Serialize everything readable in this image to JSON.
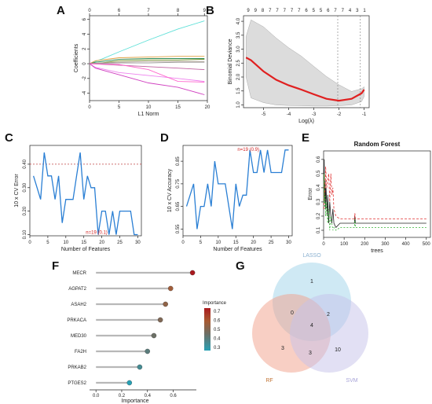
{
  "panel_letters": {
    "A": "A",
    "B": "B",
    "C": "C",
    "D": "D",
    "E": "E",
    "F": "F",
    "G": "G"
  },
  "chart_data": [
    {
      "panel": "A",
      "type": "line",
      "xlabel": "L1 Norm",
      "ylabel": "Coefficients",
      "xlim": [
        0,
        20
      ],
      "ylim": [
        -5,
        6.5
      ],
      "x_ticks": [
        "0",
        "5",
        "10",
        "15",
        "20"
      ],
      "y_ticks": [
        "-4",
        "-2",
        "0",
        "2",
        "4",
        "6"
      ],
      "top_ticks": [
        "0",
        "6",
        "7",
        "8",
        "9"
      ],
      "top_tick_x": [
        0,
        5,
        10,
        15,
        19.5
      ],
      "series": [
        {
          "color": "#5ee0d8",
          "x": [
            0,
            1,
            2,
            5,
            10,
            15,
            19.5
          ],
          "y": [
            0,
            0.3,
            0.6,
            1.6,
            3.2,
            4.7,
            5.8
          ]
        },
        {
          "color": "#e0a040",
          "x": [
            0,
            1,
            5,
            10,
            15,
            19.5
          ],
          "y": [
            0,
            0.4,
            0.8,
            0.9,
            1.0,
            1.0
          ]
        },
        {
          "color": "#2e8b57",
          "x": [
            0,
            1,
            5,
            10,
            15,
            19.5
          ],
          "y": [
            0,
            0.2,
            0.6,
            0.7,
            0.7,
            0.7
          ]
        },
        {
          "color": "#6b8e23",
          "x": [
            0,
            2,
            5,
            10,
            15,
            19.5
          ],
          "y": [
            0,
            0.1,
            0.4,
            0.5,
            0.5,
            0.6
          ]
        },
        {
          "color": "#b0a090",
          "x": [
            0,
            2,
            5,
            10,
            15,
            19.5
          ],
          "y": [
            0,
            0.1,
            0.2,
            0.3,
            0.3,
            0.3
          ]
        },
        {
          "color": "#999999",
          "x": [
            0,
            5,
            10,
            15,
            19.5
          ],
          "y": [
            0,
            0.1,
            0.1,
            0.2,
            0.2
          ]
        },
        {
          "color": "#ee82ee",
          "x": [
            0,
            1,
            5,
            10,
            15,
            19.5
          ],
          "y": [
            0,
            -0.5,
            -1.2,
            -1.6,
            -2.0,
            -2.4
          ]
        },
        {
          "color": "#d040c0",
          "x": [
            0,
            1,
            5,
            10,
            15,
            19.5
          ],
          "y": [
            0,
            -0.6,
            -1.5,
            -2.6,
            -3.2,
            -4.2
          ]
        },
        {
          "color": "#c060a0",
          "x": [
            0,
            5,
            10,
            15,
            19.5
          ],
          "y": [
            0,
            -0.2,
            -0.4,
            -0.6,
            -0.8
          ]
        },
        {
          "color": "#ff66cc",
          "x": [
            0,
            5,
            10,
            15,
            19.5
          ],
          "y": [
            0,
            -0.1,
            -0.8,
            -2.4,
            -2.5
          ]
        }
      ]
    },
    {
      "panel": "B",
      "type": "line",
      "xlabel": "Log(λ)",
      "ylabel": "Binomial Deviance",
      "xlim": [
        -5.8,
        -0.8
      ],
      "ylim": [
        0.9,
        4.2
      ],
      "x_ticks": [
        "-5",
        "-4",
        "-3",
        "-2",
        "-1"
      ],
      "y_ticks": [
        "1.0",
        "1.5",
        "2.0",
        "2.5",
        "3.0",
        "3.5",
        "4.0"
      ],
      "top_ticks": [
        "9",
        "9",
        "8",
        "7",
        "7",
        "7",
        "7",
        "7",
        "6",
        "5",
        "5",
        "6",
        "7",
        "7",
        "4",
        "3",
        "1"
      ],
      "vlines": [
        -2.05,
        -1.15
      ],
      "x": [
        -5.7,
        -5.5,
        -5,
        -4.5,
        -4,
        -3.5,
        -3,
        -2.5,
        -2,
        -1.5,
        -1.1,
        -1.0
      ],
      "y": [
        2.7,
        2.6,
        2.2,
        1.9,
        1.7,
        1.55,
        1.38,
        1.22,
        1.15,
        1.22,
        1.42,
        1.55
      ],
      "upper": [
        3.45,
        4.05,
        3.8,
        3.4,
        3.05,
        2.75,
        2.38,
        2.02,
        1.72,
        1.48,
        1.58,
        1.65
      ],
      "lower": [
        2.0,
        1.25,
        1.08,
        1.0,
        0.98,
        0.97,
        0.96,
        0.96,
        0.97,
        1.0,
        1.12,
        1.3
      ]
    },
    {
      "panel": "C",
      "type": "line",
      "xlabel": "Number of Features",
      "ylabel": "10 x CV Error",
      "xlim": [
        0,
        31
      ],
      "ylim": [
        0.095,
        0.48
      ],
      "x_ticks": [
        "0",
        "5",
        "10",
        "15",
        "20",
        "25",
        "30"
      ],
      "y_ticks": [
        "0.10",
        "0.20",
        "0.30",
        "0.40"
      ],
      "hline": 0.4,
      "annotation": "n=19 (0.1)",
      "x": [
        1,
        2,
        3,
        4,
        5,
        6,
        7,
        8,
        9,
        10,
        11,
        12,
        13,
        14,
        15,
        16,
        17,
        18,
        19,
        20,
        21,
        22,
        23,
        24,
        25,
        26,
        27,
        28,
        29,
        30
      ],
      "y": [
        0.35,
        0.3,
        0.25,
        0.45,
        0.35,
        0.35,
        0.25,
        0.35,
        0.15,
        0.25,
        0.25,
        0.25,
        0.35,
        0.45,
        0.25,
        0.35,
        0.3,
        0.3,
        0.1,
        0.2,
        0.2,
        0.1,
        0.2,
        0.1,
        0.2,
        0.2,
        0.2,
        0.2,
        0.1,
        0.1
      ]
    },
    {
      "panel": "D",
      "type": "line",
      "xlabel": "Number of Features",
      "ylabel": "10 x CV Accuracy",
      "xlim": [
        0,
        31
      ],
      "ylim": [
        0.52,
        0.92
      ],
      "x_ticks": [
        "0",
        "5",
        "10",
        "15",
        "20",
        "25",
        "30"
      ],
      "y_ticks": [
        "0.55",
        "0.65",
        "0.75",
        "0.85"
      ],
      "annotation": "n=19 (0.9)",
      "x": [
        1,
        2,
        3,
        4,
        5,
        6,
        7,
        8,
        9,
        10,
        11,
        12,
        13,
        14,
        15,
        16,
        17,
        18,
        19,
        20,
        21,
        22,
        23,
        24,
        25,
        26,
        27,
        28,
        29,
        30
      ],
      "y": [
        0.65,
        0.7,
        0.75,
        0.55,
        0.65,
        0.65,
        0.75,
        0.65,
        0.85,
        0.75,
        0.75,
        0.75,
        0.65,
        0.55,
        0.75,
        0.65,
        0.7,
        0.7,
        0.9,
        0.8,
        0.8,
        0.9,
        0.8,
        0.9,
        0.8,
        0.8,
        0.8,
        0.8,
        0.9,
        0.9
      ]
    },
    {
      "panel": "E",
      "type": "line",
      "title": "Random Forest",
      "xlabel": "trees",
      "ylabel": "Error",
      "xlim": [
        0,
        520
      ],
      "ylim": [
        0.05,
        0.66
      ],
      "x_ticks": [
        "0",
        "100",
        "200",
        "300",
        "400",
        "500"
      ],
      "y_ticks": [
        "0.1",
        "0.2",
        "0.3",
        "0.4",
        "0.5",
        "0.6"
      ],
      "series": [
        {
          "color": "#222222",
          "dash": "",
          "x": [
            1,
            3,
            5,
            8,
            10,
            12,
            15,
            18,
            20,
            25,
            30,
            35,
            40,
            45,
            50,
            60,
            80,
            100,
            150,
            152,
            155,
            200,
            300,
            400,
            500
          ],
          "y": [
            0.45,
            0.6,
            0.3,
            0.45,
            0.25,
            0.4,
            0.3,
            0.2,
            0.35,
            0.15,
            0.3,
            0.2,
            0.15,
            0.25,
            0.15,
            0.12,
            0.15,
            0.15,
            0.15,
            0.2,
            0.15,
            0.15,
            0.15,
            0.15,
            0.15
          ]
        },
        {
          "color": "#e03030",
          "dash": "3,2",
          "x": [
            1,
            3,
            5,
            8,
            10,
            15,
            20,
            25,
            30,
            35,
            40,
            45,
            50,
            60,
            80,
            100,
            150,
            152,
            155,
            200,
            300,
            400,
            500
          ],
          "y": [
            0.25,
            0.5,
            0.35,
            0.4,
            0.55,
            0.4,
            0.45,
            0.5,
            0.3,
            0.5,
            0.35,
            0.4,
            0.25,
            0.2,
            0.18,
            0.18,
            0.18,
            0.22,
            0.18,
            0.18,
            0.18,
            0.18,
            0.18
          ]
        },
        {
          "color": "#30b030",
          "dash": "2,2",
          "x": [
            1,
            3,
            5,
            8,
            10,
            15,
            20,
            25,
            30,
            35,
            40,
            45,
            50,
            60,
            80,
            100,
            150,
            152,
            155,
            200,
            300,
            400,
            500
          ],
          "y": [
            0.3,
            0.5,
            0.25,
            0.35,
            0.2,
            0.3,
            0.15,
            0.25,
            0.1,
            0.2,
            0.15,
            0.1,
            0.12,
            0.1,
            0.12,
            0.12,
            0.12,
            0.18,
            0.12,
            0.12,
            0.12,
            0.12,
            0.12
          ]
        }
      ]
    },
    {
      "panel": "F",
      "type": "scatter",
      "xlabel": "Importance",
      "legend_title": "Importance",
      "xlim": [
        -0.05,
        0.78
      ],
      "x_ticks": [
        "0.0",
        "0.2",
        "0.4",
        "0.6"
      ],
      "colorbar_ticks": [
        "0.7",
        "0.6",
        "0.5",
        "0.4",
        "0.3"
      ],
      "categories": [
        "MECR",
        "AGPAT2",
        "ASAH2",
        "PRKACA",
        "MED30",
        "FA2H",
        "PRKAB2",
        "PTGES2"
      ],
      "values": [
        0.75,
        0.58,
        0.54,
        0.5,
        0.45,
        0.4,
        0.34,
        0.26
      ]
    },
    {
      "panel": "G",
      "type": "diagram",
      "sets": [
        {
          "label": "LASSO",
          "color": "#9fd4ea",
          "text_color": "#8ab0d0"
        },
        {
          "label": "RF",
          "color": "#f2a08a",
          "text_color": "#c07030"
        },
        {
          "label": "SVM",
          "color": "#c6c2ea",
          "text_color": "#a8a4d8"
        }
      ],
      "regions": {
        "lasso_only": "1",
        "lasso_rf": "0",
        "lasso_svm": "2",
        "all": "4",
        "rf_only": "3",
        "rf_svm": "3",
        "svm_only": "10"
      }
    }
  ]
}
